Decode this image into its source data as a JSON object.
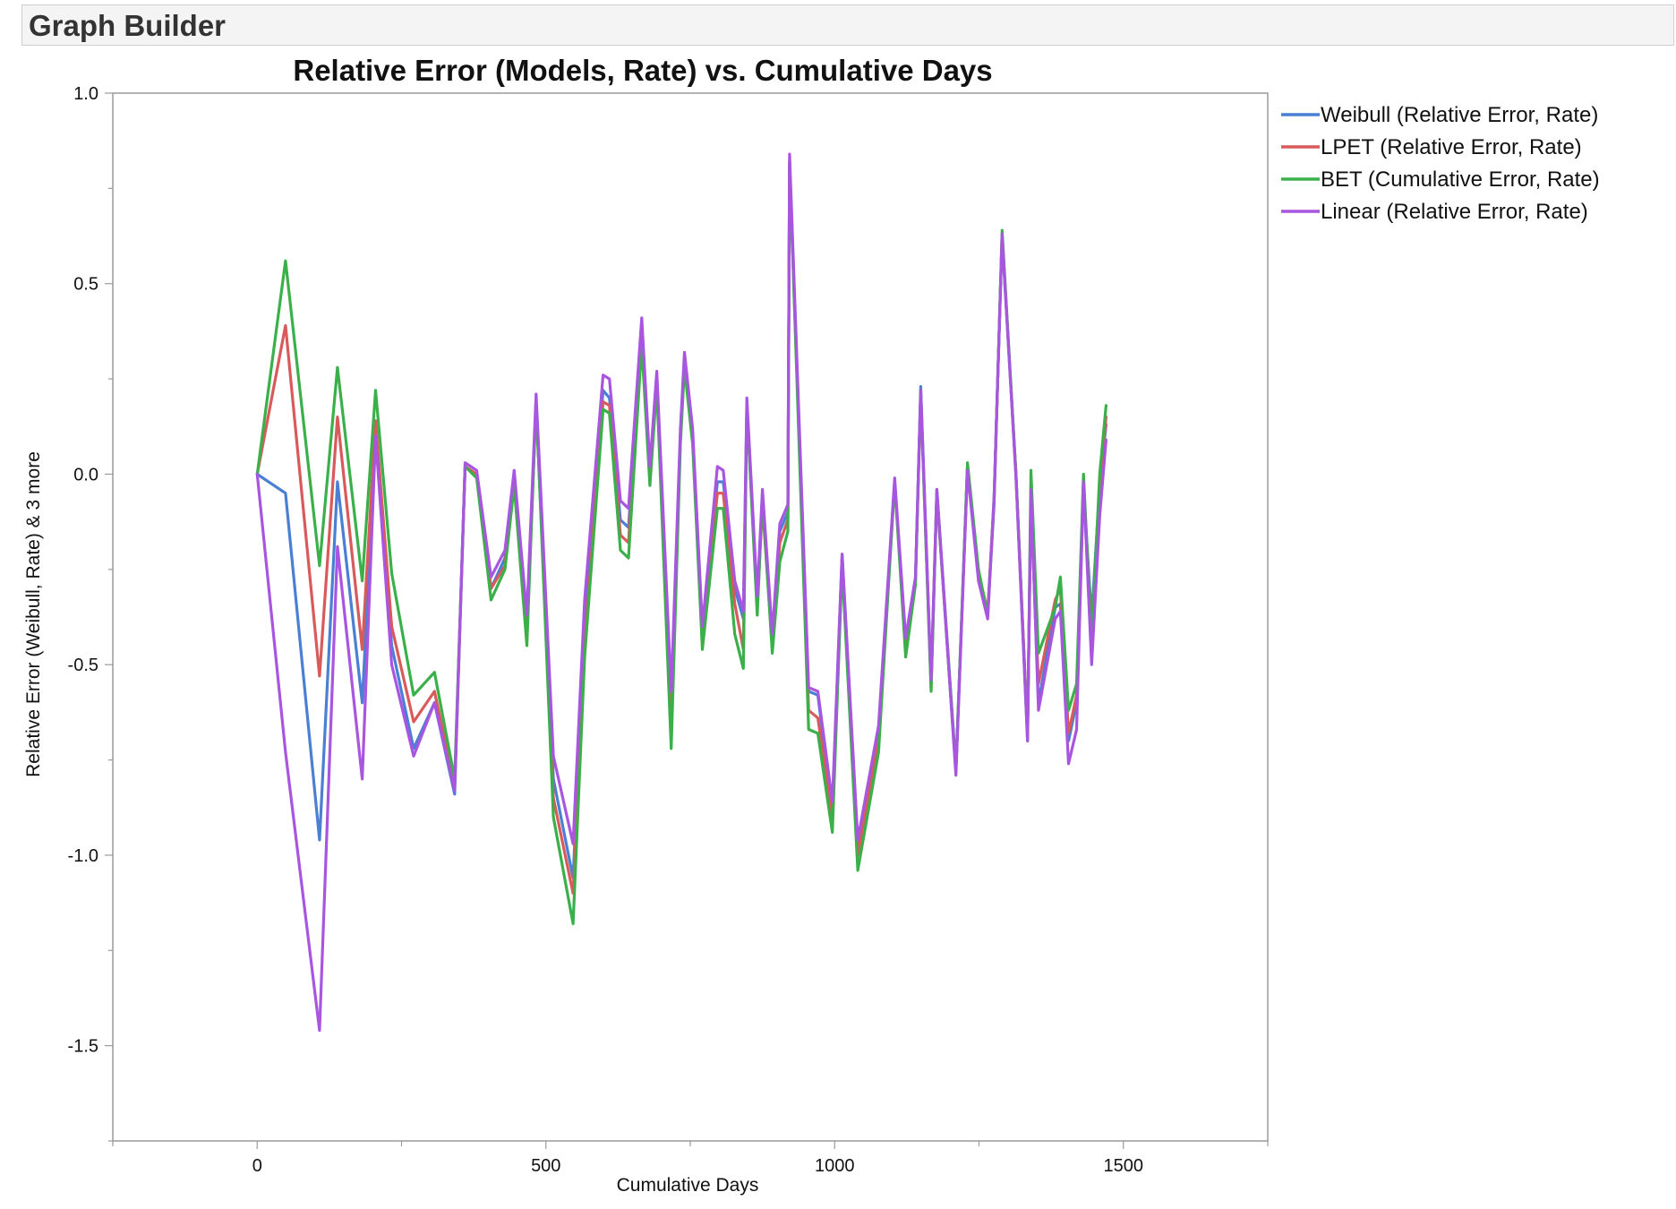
{
  "app": {
    "window_title": "Graph Builder"
  },
  "chart_data": {
    "type": "line",
    "title": "Relative Error (Models, Rate) vs. Cumulative Days",
    "xlabel": "Cumulative Days",
    "ylabel": "Relative Error (Weibull,  Rate) & 3 more",
    "xlim": [
      -250,
      1750
    ],
    "ylim": [
      -1.75,
      1.0
    ],
    "xticks": [
      0,
      500,
      1000,
      1500
    ],
    "xtick_labels": [
      "0",
      "500",
      "1000",
      "1500"
    ],
    "yticks": [
      1.0,
      0.5,
      0.0,
      -0.5,
      -1.0,
      -1.5
    ],
    "ytick_labels": [
      "1.0",
      "0.5",
      "0.0",
      "-0.5",
      "-1.0",
      "-1.5"
    ],
    "grid": false,
    "legend_position": "top-right (outside plot)",
    "x": [
      0,
      49,
      108,
      139,
      182,
      205,
      233,
      271,
      307,
      342,
      360,
      380,
      405,
      429,
      445,
      467,
      483,
      513,
      547,
      567,
      599,
      610,
      629,
      643,
      666,
      680,
      692,
      717,
      733,
      740,
      754,
      771,
      797,
      807,
      827,
      842,
      848,
      866,
      875,
      892,
      905,
      919,
      922,
      955,
      971,
      996,
      1013,
      1040,
      1076,
      1104,
      1123,
      1140,
      1149,
      1167,
      1177,
      1210,
      1230,
      1249,
      1265,
      1276,
      1290,
      1314,
      1334,
      1340,
      1353,
      1382,
      1391,
      1405,
      1419,
      1431,
      1445,
      1459,
      1470
    ],
    "series": [
      {
        "name": "Weibull (Relative Error,  Rate)",
        "color": "#4a7fd4",
        "y": [
          0.0,
          -0.05,
          -0.96,
          -0.02,
          -0.6,
          0.1,
          -0.45,
          -0.72,
          -0.6,
          -0.84,
          0.02,
          0.0,
          -0.3,
          -0.22,
          0.0,
          -0.4,
          0.18,
          -0.8,
          -1.06,
          -0.4,
          0.22,
          0.2,
          -0.12,
          -0.14,
          0.37,
          0.0,
          0.25,
          -0.6,
          0.1,
          0.3,
          0.1,
          -0.42,
          -0.02,
          -0.02,
          -0.3,
          -0.38,
          0.18,
          -0.34,
          -0.05,
          -0.44,
          -0.15,
          -0.1,
          0.82,
          -0.57,
          -0.58,
          -0.88,
          -0.21,
          -0.98,
          -0.68,
          -0.02,
          -0.45,
          -0.28,
          0.23,
          -0.55,
          -0.04,
          -0.77,
          0.02,
          -0.27,
          -0.37,
          -0.06,
          0.62,
          0.0,
          -0.68,
          -0.06,
          -0.6,
          -0.35,
          -0.34,
          -0.7,
          -0.6,
          -0.04,
          -0.38,
          -0.03,
          0.13
        ]
      },
      {
        "name": "LPET (Relative Error, Rate)",
        "color": "#d95a5a",
        "y": [
          0.0,
          0.39,
          -0.53,
          0.15,
          -0.46,
          0.14,
          -0.4,
          -0.65,
          -0.57,
          -0.82,
          0.02,
          0.0,
          -0.3,
          -0.24,
          0.0,
          -0.42,
          0.19,
          -0.85,
          -1.1,
          -0.45,
          0.19,
          0.18,
          -0.16,
          -0.18,
          0.38,
          -0.02,
          0.26,
          -0.65,
          0.1,
          0.3,
          0.1,
          -0.44,
          -0.05,
          -0.05,
          -0.34,
          -0.46,
          0.18,
          -0.35,
          -0.08,
          -0.45,
          -0.18,
          -0.12,
          0.82,
          -0.62,
          -0.64,
          -0.9,
          -0.22,
          -1.0,
          -0.7,
          -0.02,
          -0.46,
          -0.28,
          0.21,
          -0.56,
          -0.05,
          -0.78,
          0.02,
          -0.26,
          -0.36,
          -0.07,
          0.63,
          0.0,
          -0.68,
          -0.08,
          -0.55,
          -0.33,
          -0.3,
          -0.68,
          -0.58,
          -0.02,
          -0.42,
          -0.04,
          0.15
        ]
      },
      {
        "name": "BET (Cumulative Error, Rate)",
        "color": "#3bb04a",
        "y": [
          0.0,
          0.56,
          -0.24,
          0.28,
          -0.28,
          0.22,
          -0.26,
          -0.58,
          -0.52,
          -0.8,
          0.02,
          -0.01,
          -0.33,
          -0.25,
          -0.03,
          -0.45,
          0.19,
          -0.9,
          -1.18,
          -0.48,
          0.17,
          0.16,
          -0.2,
          -0.22,
          0.34,
          -0.03,
          0.23,
          -0.72,
          0.08,
          0.28,
          0.08,
          -0.46,
          -0.09,
          -0.09,
          -0.42,
          -0.51,
          0.18,
          -0.37,
          -0.06,
          -0.47,
          -0.23,
          -0.15,
          0.82,
          -0.67,
          -0.68,
          -0.94,
          -0.24,
          -1.04,
          -0.73,
          -0.02,
          -0.48,
          -0.29,
          0.21,
          -0.57,
          -0.05,
          -0.78,
          0.03,
          -0.25,
          -0.37,
          -0.08,
          0.64,
          0.0,
          -0.7,
          0.01,
          -0.47,
          -0.35,
          -0.27,
          -0.62,
          -0.55,
          0.0,
          -0.44,
          0.0,
          0.18
        ]
      },
      {
        "name": "Linear (Relative Error, Rate)",
        "color": "#a855e0",
        "y": [
          0.0,
          -0.73,
          -1.46,
          -0.19,
          -0.8,
          0.1,
          -0.5,
          -0.74,
          -0.6,
          -0.83,
          0.03,
          0.01,
          -0.27,
          -0.2,
          0.01,
          -0.37,
          0.21,
          -0.74,
          -0.97,
          -0.33,
          0.26,
          0.25,
          -0.07,
          -0.09,
          0.41,
          0.02,
          0.27,
          -0.57,
          0.12,
          0.32,
          0.12,
          -0.4,
          0.02,
          0.01,
          -0.28,
          -0.36,
          0.2,
          -0.32,
          -0.04,
          -0.42,
          -0.13,
          -0.08,
          0.84,
          -0.56,
          -0.57,
          -0.86,
          -0.21,
          -0.96,
          -0.66,
          -0.01,
          -0.43,
          -0.27,
          0.22,
          -0.54,
          -0.04,
          -0.79,
          0.01,
          -0.28,
          -0.38,
          -0.07,
          0.63,
          -0.01,
          -0.7,
          -0.04,
          -0.62,
          -0.38,
          -0.36,
          -0.76,
          -0.67,
          -0.02,
          -0.5,
          -0.11,
          0.09
        ]
      }
    ]
  }
}
